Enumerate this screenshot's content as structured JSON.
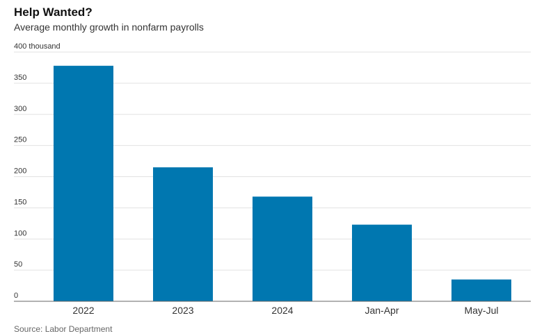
{
  "title": "Help Wanted?",
  "subtitle": "Average monthly growth in nonfarm payrolls",
  "source": "Source: Labor Department",
  "chart_data": {
    "type": "bar",
    "categories": [
      "2022",
      "2023",
      "2024",
      "Jan-Apr",
      "May-Jul"
    ],
    "values": [
      378,
      215,
      168,
      123,
      35
    ],
    "yticks": [
      0,
      50,
      100,
      150,
      200,
      250,
      300,
      350,
      400
    ],
    "ytick_labels": [
      "0",
      "50",
      "100",
      "150",
      "200",
      "250",
      "300",
      "350",
      "400 thousand"
    ],
    "ylim": [
      0,
      400
    ],
    "grid": true,
    "bar_color": "#0077b0"
  }
}
